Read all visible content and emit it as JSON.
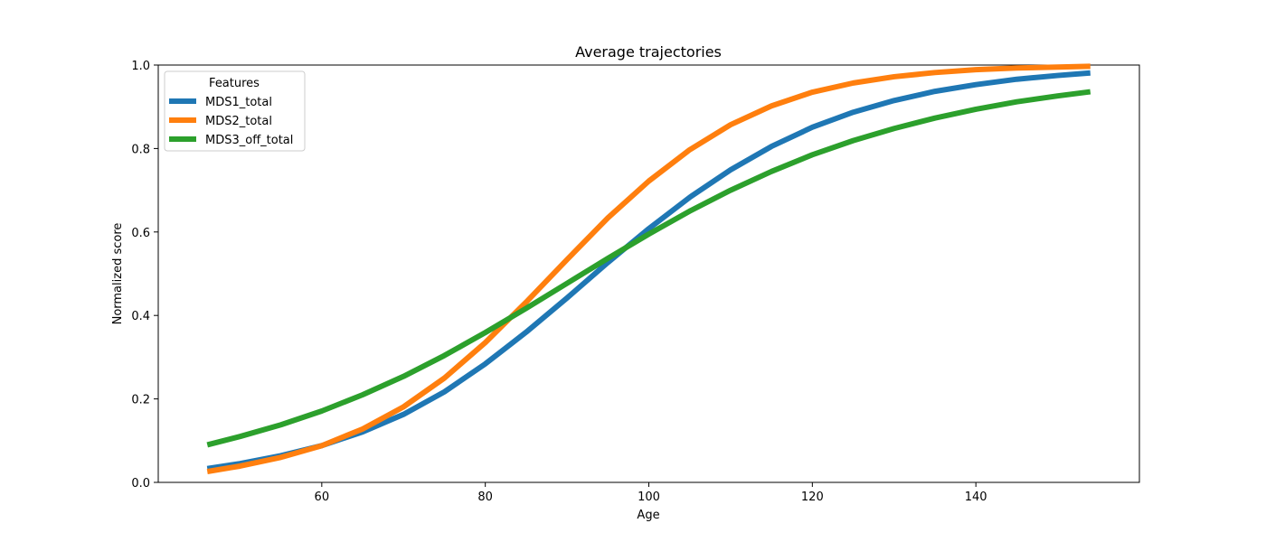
{
  "chart_data": {
    "type": "line",
    "title": "Average trajectories",
    "xlabel": "Age",
    "ylabel": "Normalized score",
    "xlim": [
      40,
      160
    ],
    "ylim": [
      0,
      1
    ],
    "xticks": [
      60,
      80,
      100,
      120,
      140
    ],
    "yticks": [
      0.0,
      0.2,
      0.4,
      0.6,
      0.8,
      1.0
    ],
    "grid": false,
    "legend": {
      "title": "Features",
      "placement": "top-left"
    },
    "series": [
      {
        "name": "MDS1_total",
        "color": "#1f77b4",
        "x": [
          46,
          50,
          55,
          60,
          65,
          70,
          75,
          80,
          85,
          90,
          95,
          100,
          105,
          110,
          115,
          120,
          125,
          130,
          135,
          140,
          145,
          150,
          154
        ],
        "y": [
          0.033,
          0.045,
          0.064,
          0.088,
          0.121,
          0.163,
          0.217,
          0.284,
          0.36,
          0.442,
          0.527,
          0.608,
          0.683,
          0.749,
          0.805,
          0.851,
          0.887,
          0.915,
          0.937,
          0.953,
          0.966,
          0.975,
          0.981
        ]
      },
      {
        "name": "MDS2_total",
        "color": "#ff7f0e",
        "x": [
          46,
          50,
          55,
          60,
          65,
          70,
          75,
          80,
          85,
          90,
          95,
          100,
          105,
          110,
          115,
          120,
          125,
          130,
          135,
          140,
          145,
          150,
          154
        ],
        "y": [
          0.026,
          0.039,
          0.06,
          0.088,
          0.128,
          0.181,
          0.25,
          0.335,
          0.432,
          0.534,
          0.634,
          0.722,
          0.797,
          0.857,
          0.902,
          0.935,
          0.957,
          0.972,
          0.982,
          0.989,
          0.993,
          0.995,
          0.997
        ]
      },
      {
        "name": "MDS3_off_total",
        "color": "#2ca02c",
        "x": [
          46,
          50,
          55,
          60,
          65,
          70,
          75,
          80,
          85,
          90,
          95,
          100,
          105,
          110,
          115,
          120,
          125,
          130,
          135,
          140,
          145,
          150,
          154
        ],
        "y": [
          0.09,
          0.11,
          0.138,
          0.171,
          0.21,
          0.254,
          0.304,
          0.359,
          0.417,
          0.477,
          0.537,
          0.595,
          0.65,
          0.7,
          0.745,
          0.785,
          0.819,
          0.848,
          0.873,
          0.894,
          0.912,
          0.926,
          0.936
        ]
      }
    ]
  }
}
